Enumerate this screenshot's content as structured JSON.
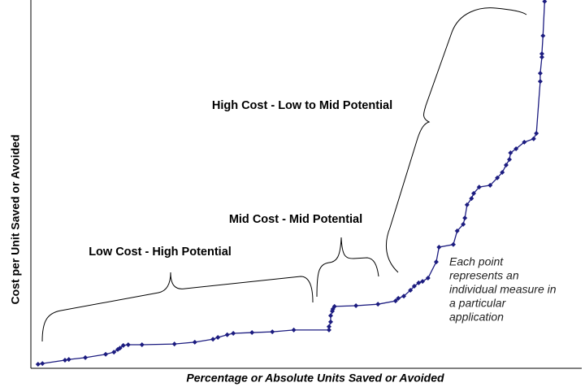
{
  "chart_data": {
    "type": "line",
    "x_label": "Percentage or Absolute Units Saved or Avoided",
    "y_label": "Cost per Unit Saved or Avoided",
    "annotations": [
      "High Cost - Low to Mid Potential",
      "Mid Cost - Mid Potential",
      "Low Cost - High Potential"
    ],
    "note": [
      "Each point",
      "represents an",
      "individual measure in",
      "a particular",
      "application"
    ],
    "color": "#1c1c80",
    "xlim": [
      0,
      100
    ],
    "ylim": [
      0,
      100
    ],
    "x": [
      1.3,
      2.1,
      6.2,
      6.9,
      9.9,
      13.6,
      15.1,
      15.8,
      16.2,
      16.8,
      17.7,
      20.2,
      26.1,
      29.8,
      33.1,
      34.0,
      35.7,
      36.8,
      40.2,
      43.9,
      47.8,
      54.2,
      54.2,
      54.5,
      54.5,
      54.8,
      54.9,
      55.2,
      59.1,
      63.1,
      66.3,
      66.8,
      67.8,
      69.0,
      69.7,
      70.5,
      71.2,
      72.2,
      73.7,
      74.2,
      76.8,
      77.5,
      78.6,
      78.9,
      79.3,
      80.1,
      80.5,
      81.5,
      83.5,
      84.8,
      85.7,
      86.4,
      87.0,
      87.2,
      88.2,
      89.7,
      91.4,
      91.9,
      92.6,
      92.6,
      92.9,
      92.9,
      93.1,
      93.4
    ],
    "values": [
      1.1,
      1.3,
      2.2,
      2.4,
      2.9,
      3.8,
      4.4,
      5.1,
      5.5,
      6.2,
      6.4,
      6.4,
      6.6,
      7.1,
      7.9,
      8.4,
      9.1,
      9.5,
      9.7,
      9.9,
      10.4,
      10.4,
      11.3,
      12.6,
      14.3,
      15.5,
      16.1,
      16.8,
      17.0,
      17.4,
      18.3,
      19.0,
      19.6,
      21.2,
      22.3,
      23.2,
      23.6,
      24.5,
      28.9,
      32.9,
      33.6,
      37.3,
      39.1,
      40.8,
      44.4,
      46.1,
      47.5,
      49.2,
      49.7,
      51.7,
      53.2,
      55.2,
      56.7,
      58.5,
      59.6,
      61.4,
      62.3,
      63.8,
      77.9,
      80.1,
      84.5,
      85.4,
      90.3,
      99.6
    ]
  }
}
